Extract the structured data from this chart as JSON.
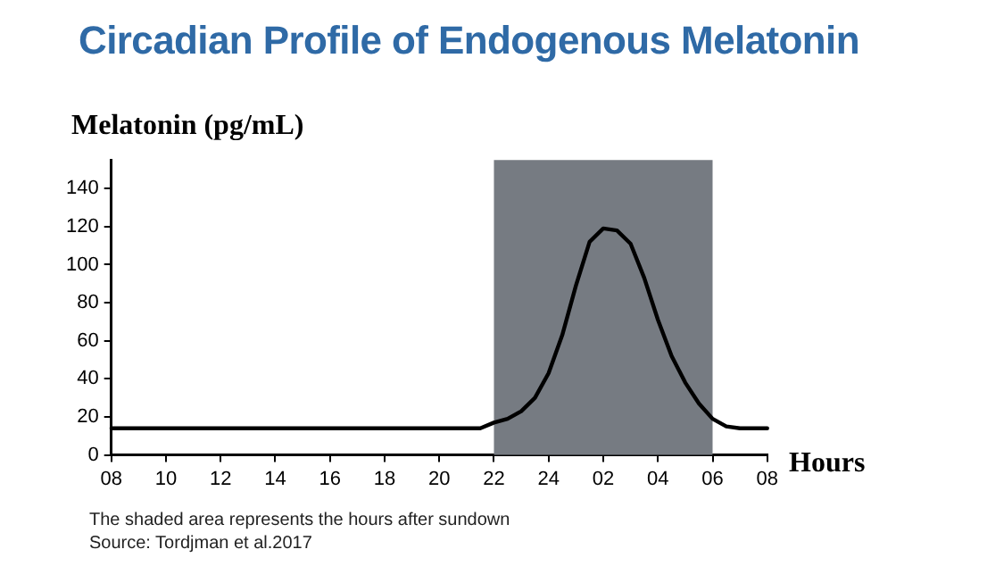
{
  "chart_data": {
    "type": "line",
    "title": "Circadian Profile of Endogenous Melatonin",
    "ylabel": "Melatonin (pg/mL)",
    "xlabel": "Hours",
    "annotations": [
      "The shaded area represents the hours after sundown",
      "Source: Tordjman et al.2017"
    ],
    "categories": [
      "08",
      null,
      null,
      null,
      "10",
      null,
      null,
      null,
      "12",
      null,
      null,
      null,
      "14",
      null,
      null,
      null,
      "16",
      null,
      null,
      null,
      "18",
      null,
      null,
      null,
      "20",
      null,
      null,
      null,
      "22",
      null,
      null,
      null,
      "24",
      null,
      null,
      null,
      "02",
      null,
      null,
      null,
      "04",
      null,
      null,
      null,
      "06",
      null,
      null,
      null,
      "08"
    ],
    "series": [
      {
        "color": "#000000",
        "values": [
          14,
          14,
          14,
          14,
          14,
          14,
          14,
          14,
          14,
          14,
          14,
          14,
          14,
          14,
          14,
          14,
          14,
          14,
          14,
          14,
          14,
          14,
          14,
          14,
          14,
          14,
          14,
          14,
          17,
          19,
          23,
          30,
          43,
          63,
          89,
          112,
          119,
          118,
          111,
          93,
          71,
          52,
          38,
          27,
          19,
          15,
          14,
          14,
          14
        ]
      }
    ],
    "ylim": [
      0,
      155
    ],
    "yticks": [
      0,
      20,
      40,
      60,
      80,
      100,
      120,
      140
    ],
    "bands": [
      {
        "axis": "x",
        "from": "22",
        "to": "06",
        "color": "#767b82"
      }
    ],
    "grid": false,
    "legend": false,
    "marker": "none",
    "line_style": "solid"
  }
}
